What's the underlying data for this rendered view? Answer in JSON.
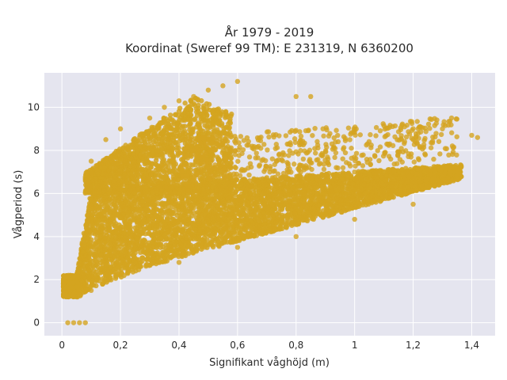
{
  "chart_data": {
    "type": "scatter",
    "title_line1": "År 1979 - 2019",
    "title_line2": "Koordinat (Sweref 99 TM): E 231319, N 6360200",
    "xlabel": "Signifikant våghöjd (m)",
    "ylabel": "Vågperiod (s)",
    "xlim": [
      -0.06,
      1.48
    ],
    "ylim": [
      -0.6,
      11.6
    ],
    "x_ticks": [
      0,
      0.2,
      0.4,
      0.6,
      0.8,
      1,
      1.2,
      1.4
    ],
    "x_tick_labels": [
      "0",
      "0,2",
      "0,4",
      "0,6",
      "0,8",
      "1",
      "1,2",
      "1,4"
    ],
    "y_ticks": [
      0,
      2,
      4,
      6,
      8,
      10
    ],
    "y_tick_labels": [
      "0",
      "2",
      "4",
      "6",
      "8",
      "10"
    ],
    "grid": true,
    "plot_background": "#e5e5ef",
    "point_color": "#d4a420",
    "points": [
      [
        0.02,
        0
      ],
      [
        0.04,
        0
      ],
      [
        0.06,
        0
      ],
      [
        0.08,
        0
      ],
      [
        0.05,
        1.2
      ],
      [
        0.1,
        1.5
      ],
      [
        0.1,
        5.5
      ],
      [
        0.1,
        7.5
      ],
      [
        0.15,
        2.5
      ],
      [
        0.15,
        8.5
      ],
      [
        0.2,
        3.0
      ],
      [
        0.2,
        5.0
      ],
      [
        0.2,
        9.0
      ],
      [
        0.25,
        4.0
      ],
      [
        0.3,
        9.5
      ],
      [
        0.3,
        3.2
      ],
      [
        0.35,
        10.0
      ],
      [
        0.4,
        10.3
      ],
      [
        0.45,
        10.5
      ],
      [
        0.5,
        10.8
      ],
      [
        0.55,
        11.0
      ],
      [
        0.6,
        11.2
      ],
      [
        0.4,
        2.8
      ],
      [
        0.5,
        5.0
      ],
      [
        0.6,
        3.5
      ],
      [
        0.7,
        5.5
      ],
      [
        0.8,
        4.0
      ],
      [
        0.8,
        10.5
      ],
      [
        0.85,
        10.5
      ],
      [
        0.9,
        6.0
      ],
      [
        1.0,
        4.8
      ],
      [
        1.0,
        7.0
      ],
      [
        1.1,
        6.0
      ],
      [
        1.2,
        5.5
      ],
      [
        1.2,
        8.5
      ],
      [
        1.3,
        6.5
      ],
      [
        1.3,
        9.0
      ],
      [
        1.4,
        8.7
      ],
      [
        1.42,
        8.6
      ]
    ]
  }
}
